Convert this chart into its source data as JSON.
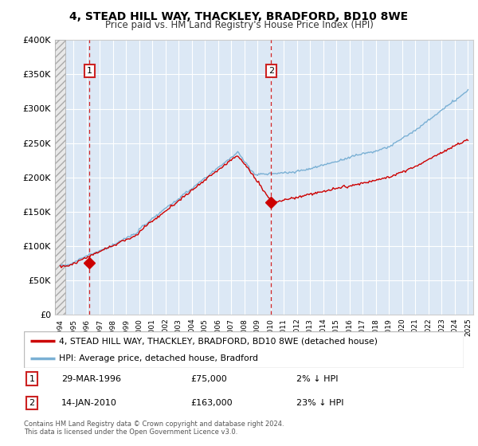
{
  "title1": "4, STEAD HILL WAY, THACKLEY, BRADFORD, BD10 8WE",
  "title2": "Price paid vs. HM Land Registry's House Price Index (HPI)",
  "sale1_date": 1996.23,
  "sale1_price": 75000,
  "sale2_date": 2010.04,
  "sale2_price": 163000,
  "sale1_date_str": "29-MAR-1996",
  "sale1_price_str": "£75,000",
  "sale1_hpi_str": "2% ↓ HPI",
  "sale2_date_str": "14-JAN-2010",
  "sale2_price_str": "£163,000",
  "sale2_hpi_str": "23% ↓ HPI",
  "ylim": [
    0,
    400000
  ],
  "xlim_start": 1993.6,
  "xlim_end": 2025.4,
  "legend_line1": "4, STEAD HILL WAY, THACKLEY, BRADFORD, BD10 8WE (detached house)",
  "legend_line2": "HPI: Average price, detached house, Bradford",
  "footer": "Contains HM Land Registry data © Crown copyright and database right 2024.\nThis data is licensed under the Open Government Licence v3.0.",
  "bg_color": "#dce8f5",
  "red_line_color": "#cc0000",
  "blue_line_color": "#7ab0d4",
  "vline_color": "#cc0000",
  "yticks": [
    0,
    50000,
    100000,
    150000,
    200000,
    250000,
    300000,
    350000,
    400000
  ],
  "ytick_labels": [
    "£0",
    "£50K",
    "£100K",
    "£150K",
    "£200K",
    "£250K",
    "£300K",
    "£350K",
    "£400K"
  ],
  "xticks": [
    1994,
    1995,
    1996,
    1997,
    1998,
    1999,
    2000,
    2001,
    2002,
    2003,
    2004,
    2005,
    2006,
    2007,
    2008,
    2009,
    2010,
    2011,
    2012,
    2013,
    2014,
    2015,
    2016,
    2017,
    2018,
    2019,
    2020,
    2021,
    2022,
    2023,
    2024,
    2025
  ]
}
